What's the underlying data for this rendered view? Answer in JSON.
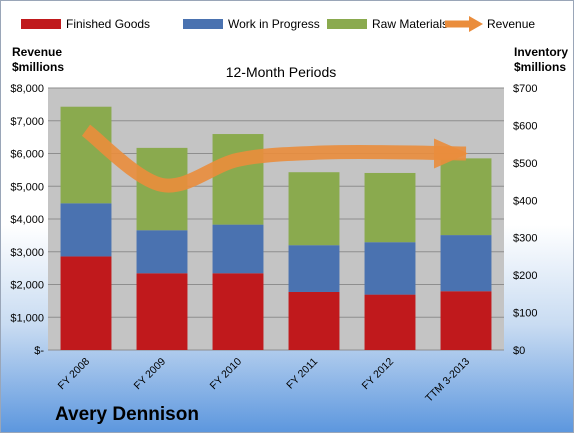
{
  "company": "Avery Dennison",
  "chart_data": {
    "type": "bar",
    "stacked": true,
    "title": "12-Month Periods",
    "categories": [
      "FY 2008",
      "FY 2009",
      "FY 2010",
      "FY 2011",
      "FY 2012",
      "TTM 3-2013"
    ],
    "series": [
      {
        "name": "Finished Goods",
        "axis": "right",
        "color": "#c0191c",
        "values": [
          250,
          205,
          205,
          155,
          148,
          157
        ]
      },
      {
        "name": "Work in Progress",
        "axis": "right",
        "color": "#4a72b0",
        "values": [
          142,
          115,
          130,
          125,
          140,
          150
        ]
      },
      {
        "name": "Raw Materials",
        "axis": "right",
        "color": "#8aaa4e",
        "values": [
          258,
          220,
          242,
          195,
          185,
          205
        ]
      },
      {
        "name": "Revenue",
        "type": "line",
        "axis": "left",
        "color": "#ea8d3c",
        "values": [
          6710,
          5040,
          5810,
          6020,
          6040,
          6000
        ]
      }
    ],
    "left_axis": {
      "label_lines": [
        "Revenue",
        "$millions"
      ],
      "ylim": [
        0,
        8000
      ],
      "ticks": [
        "$-",
        "$1,000",
        "$2,000",
        "$3,000",
        "$4,000",
        "$5,000",
        "$6,000",
        "$7,000",
        "$8,000"
      ]
    },
    "right_axis": {
      "label_lines": [
        "Inventory",
        "$millions"
      ],
      "ylim": [
        0,
        700
      ],
      "ticks": [
        "$0",
        "$100",
        "$200",
        "$300",
        "$400",
        "$500",
        "$600",
        "$700"
      ]
    },
    "legend_position": "top",
    "grid": true,
    "colors": {
      "plot_background": "#c4c4c4",
      "gridline": "#8e8e8e",
      "revenue_line": "#ea8d3c"
    }
  }
}
